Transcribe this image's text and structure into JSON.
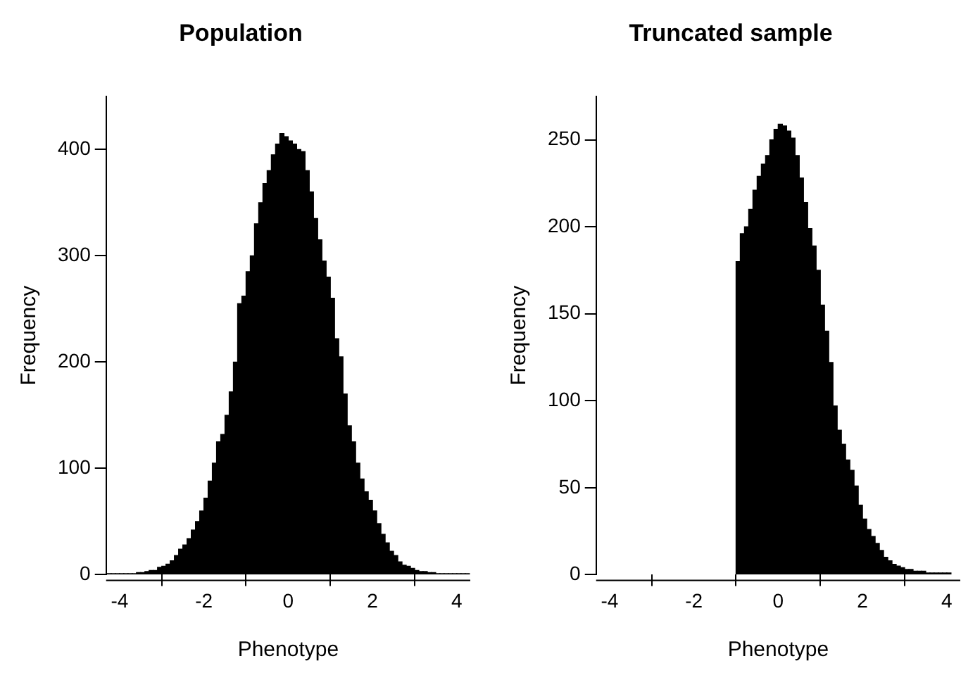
{
  "chart_data": [
    {
      "type": "histogram",
      "title": "Population",
      "xlabel": "Phenotype",
      "ylabel": "Frequency",
      "color": "#000000",
      "grid": false,
      "legend": false,
      "bins": [
        -4.3,
        -4.2,
        -4.1,
        -4.0,
        -3.9,
        -3.8,
        -3.7,
        -3.6,
        -3.5,
        -3.4,
        -3.3,
        -3.2,
        -3.1,
        -3.0,
        -2.9,
        -2.8,
        -2.7,
        -2.6,
        -2.5,
        -2.4,
        -2.3,
        -2.2,
        -2.1,
        -2.0,
        -1.9,
        -1.8,
        -1.7,
        -1.6,
        -1.5,
        -1.4,
        -1.3,
        -1.2,
        -1.1,
        -1.0,
        -0.9,
        -0.8,
        -0.7,
        -0.6,
        -0.5,
        -0.4,
        -0.3,
        -0.2,
        -0.1,
        0,
        0.1,
        0.2,
        0.3,
        0.4,
        0.5,
        0.6,
        0.7,
        0.8,
        0.9,
        1.0,
        1.1,
        1.2,
        1.3,
        1.4,
        1.5,
        1.6,
        1.7,
        1.8,
        1.9,
        2.0,
        2.1,
        2.2,
        2.3,
        2.4,
        2.5,
        2.6,
        2.7,
        2.8,
        2.9,
        3.0,
        3.1,
        3.2,
        3.3,
        3.4,
        3.5,
        3.6,
        3.7,
        3.8,
        3.9,
        4.0,
        4.1,
        4.2,
        4.3
      ],
      "values": [
        1,
        1,
        1,
        1,
        1,
        1,
        1,
        2,
        2,
        3,
        4,
        4,
        7,
        8,
        10,
        13,
        18,
        24,
        28,
        34,
        42,
        50,
        60,
        72,
        88,
        105,
        125,
        132,
        150,
        172,
        200,
        255,
        262,
        285,
        300,
        330,
        350,
        368,
        380,
        395,
        405,
        415,
        412,
        408,
        405,
        400,
        398,
        380,
        360,
        335,
        315,
        295,
        280,
        260,
        222,
        205,
        170,
        140,
        125,
        105,
        90,
        78,
        70,
        60,
        48,
        38,
        30,
        22,
        18,
        12,
        9,
        8,
        6,
        4,
        3,
        3,
        2,
        2,
        1,
        1,
        1,
        1,
        1,
        1,
        1,
        1
      ],
      "xlim": [
        -4.32,
        4.32
      ],
      "xticks": [
        -4,
        -2,
        0,
        2,
        4
      ],
      "ylim": [
        0,
        450
      ],
      "yticks": [
        0,
        100,
        200,
        300,
        400
      ]
    },
    {
      "type": "histogram",
      "title": "Truncated sample",
      "xlabel": "Phenotype",
      "ylabel": "Frequency",
      "color": "#000000",
      "grid": false,
      "legend": false,
      "bins": [
        -1.0,
        -0.9,
        -0.8,
        -0.7,
        -0.6,
        -0.5,
        -0.4,
        -0.3,
        -0.2,
        -0.1,
        0,
        0.1,
        0.2,
        0.3,
        0.4,
        0.5,
        0.6,
        0.7,
        0.8,
        0.9,
        1.0,
        1.1,
        1.2,
        1.3,
        1.4,
        1.5,
        1.6,
        1.7,
        1.8,
        1.9,
        2.0,
        2.1,
        2.2,
        2.3,
        2.4,
        2.5,
        2.6,
        2.7,
        2.8,
        2.9,
        3.0,
        3.1,
        3.2,
        3.3,
        3.4,
        3.5,
        3.6,
        3.7,
        3.8,
        3.9,
        4.0,
        4.1
      ],
      "values": [
        180,
        196,
        200,
        210,
        221,
        229,
        236,
        241,
        250,
        256,
        259,
        258,
        255,
        251,
        241,
        228,
        214,
        199,
        189,
        175,
        155,
        140,
        122,
        97,
        83,
        75,
        66,
        60,
        51,
        40,
        32,
        26,
        22,
        18,
        14,
        10,
        8,
        6,
        5,
        4,
        3,
        3,
        2,
        2,
        2,
        1,
        1,
        1,
        1,
        1,
        1
      ],
      "xlim": [
        -4.32,
        4.32
      ],
      "xticks": [
        -4,
        -2,
        0,
        2,
        4
      ],
      "ylim": [
        0,
        275
      ],
      "yticks": [
        0,
        50,
        100,
        150,
        200,
        250
      ]
    }
  ]
}
